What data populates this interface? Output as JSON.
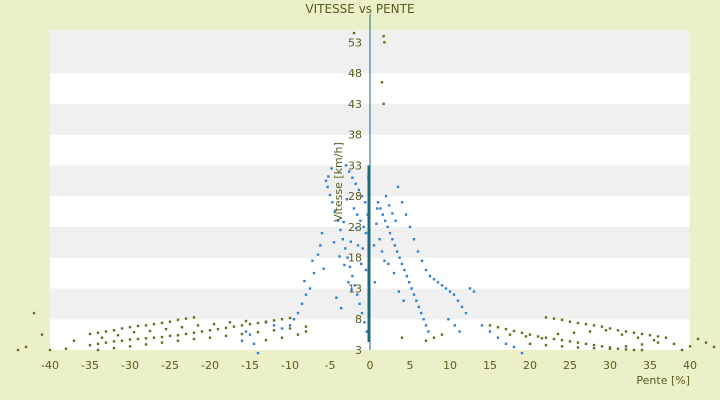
{
  "chart_data": {
    "type": "scatter",
    "title": "VITESSE vs PENTE",
    "xlabel": "Pente [%]",
    "ylabel": "Vitesse [km/h]",
    "xlim": [
      -40,
      40
    ],
    "ylim": [
      3,
      55
    ],
    "x_ticks": [
      -40,
      -35,
      -30,
      -25,
      -20,
      -15,
      -10,
      -5,
      0,
      5,
      10,
      15,
      20,
      25,
      30,
      35,
      40
    ],
    "y_ticks": [
      3,
      8,
      13,
      18,
      23,
      28,
      33,
      38,
      43,
      48,
      53
    ],
    "grid": "horizontal-bands",
    "legend": "none",
    "colors": {
      "background": "#ecf0c8",
      "plot_band_light": "#ffffff",
      "plot_band_dark": "#f0f0f0",
      "axis": "#1f6680",
      "series_blue": "#2e7fd6",
      "series_olive": "#6a6a1a",
      "text": "#5a5a1e"
    },
    "series": [
      {
        "color_key": "series_blue",
        "points": [
          [
            -5.5,
            30.5
          ],
          [
            -5.3,
            29.5
          ],
          [
            -5.0,
            28.2
          ],
          [
            -4.7,
            27.0
          ],
          [
            -4.4,
            25.5
          ],
          [
            -4.0,
            24.0
          ],
          [
            -3.7,
            22.5
          ],
          [
            -3.4,
            21.0
          ],
          [
            -3.1,
            19.5
          ],
          [
            -2.8,
            18.0
          ],
          [
            -2.5,
            16.5
          ],
          [
            -2.2,
            15.0
          ],
          [
            -1.9,
            13.5
          ],
          [
            -1.6,
            12.0
          ],
          [
            -1.3,
            10.5
          ],
          [
            -1.0,
            9.0
          ],
          [
            -0.7,
            7.5
          ],
          [
            -0.4,
            6.0
          ],
          [
            -3.0,
            33.0
          ],
          [
            -2.6,
            32.0
          ],
          [
            -2.2,
            31.0
          ],
          [
            -1.8,
            30.0
          ],
          [
            -1.4,
            29.0
          ],
          [
            -1.0,
            28.0
          ],
          [
            -0.6,
            27.0
          ],
          [
            -2.0,
            26.0
          ],
          [
            -1.6,
            25.0
          ],
          [
            -1.2,
            24.0
          ],
          [
            -0.8,
            23.0
          ],
          [
            -0.5,
            22.0
          ],
          [
            -6.0,
            22.0
          ],
          [
            -6.5,
            18.5
          ],
          [
            -7.0,
            15.5
          ],
          [
            -7.5,
            13.0
          ],
          [
            -8.0,
            12.0
          ],
          [
            -8.5,
            10.5
          ],
          [
            -9.0,
            9.0
          ],
          [
            -9.5,
            8.0
          ],
          [
            -10.0,
            7.0
          ],
          [
            -11.0,
            6.5
          ],
          [
            -12.0,
            7.0
          ],
          [
            -13.0,
            7.5
          ],
          [
            -14.0,
            2.5
          ],
          [
            -14.5,
            4.0
          ],
          [
            -15.0,
            5.5
          ],
          [
            -15.5,
            6.0
          ],
          [
            -16.0,
            4.5
          ],
          [
            -4.5,
            20.5
          ],
          [
            -3.8,
            18.2
          ],
          [
            -3.2,
            16.8
          ],
          [
            -2.7,
            14.0
          ],
          [
            -2.3,
            12.8
          ],
          [
            -5.8,
            16.2
          ],
          [
            -6.2,
            20.0
          ],
          [
            -7.2,
            17.5
          ],
          [
            -8.2,
            14.2
          ],
          [
            -4.2,
            11.5
          ],
          [
            -3.6,
            9.8
          ],
          [
            -1.5,
            20.0
          ],
          [
            -1.1,
            17.0
          ],
          [
            -0.9,
            19.5
          ],
          [
            -0.3,
            25.0
          ],
          [
            -0.2,
            31.0
          ],
          [
            -2.9,
            27.5
          ],
          [
            -3.3,
            23.8
          ],
          [
            -4.8,
            32.5
          ],
          [
            -5.2,
            31.2
          ],
          [
            -0.5,
            16.0
          ],
          [
            -1.7,
            22.8
          ],
          [
            -2.4,
            20.6
          ],
          [
            1.0,
            27.0
          ],
          [
            1.3,
            26.0
          ],
          [
            1.6,
            25.0
          ],
          [
            1.9,
            24.0
          ],
          [
            2.2,
            23.0
          ],
          [
            2.5,
            22.0
          ],
          [
            2.8,
            21.0
          ],
          [
            3.1,
            20.0
          ],
          [
            3.4,
            19.0
          ],
          [
            3.7,
            18.0
          ],
          [
            4.0,
            17.0
          ],
          [
            4.3,
            16.0
          ],
          [
            4.6,
            15.0
          ],
          [
            4.9,
            14.0
          ],
          [
            5.2,
            13.0
          ],
          [
            5.5,
            12.0
          ],
          [
            5.8,
            11.0
          ],
          [
            6.1,
            10.0
          ],
          [
            6.4,
            9.0
          ],
          [
            6.7,
            8.0
          ],
          [
            7.0,
            7.0
          ],
          [
            7.3,
            6.0
          ],
          [
            3.5,
            29.5
          ],
          [
            4.0,
            27.0
          ],
          [
            4.5,
            25.0
          ],
          [
            5.0,
            23.0
          ],
          [
            5.5,
            21.0
          ],
          [
            6.0,
            19.0
          ],
          [
            6.5,
            17.5
          ],
          [
            7.0,
            16.0
          ],
          [
            7.5,
            15.0
          ],
          [
            8.0,
            14.5
          ],
          [
            8.5,
            14.0
          ],
          [
            9.0,
            13.5
          ],
          [
            9.5,
            13.0
          ],
          [
            10.0,
            12.5
          ],
          [
            10.5,
            12.0
          ],
          [
            11.0,
            11.0
          ],
          [
            11.5,
            10.0
          ],
          [
            12.0,
            9.0
          ],
          [
            12.5,
            13.0
          ],
          [
            13.0,
            12.5
          ],
          [
            14.0,
            7.0
          ],
          [
            15.0,
            6.0
          ],
          [
            16.0,
            5.0
          ],
          [
            17.0,
            4.0
          ],
          [
            18.0,
            3.5
          ],
          [
            19.0,
            2.5
          ],
          [
            2.0,
            28.0
          ],
          [
            2.4,
            26.5
          ],
          [
            2.8,
            25.2
          ],
          [
            3.2,
            24.0
          ],
          [
            1.2,
            21.0
          ],
          [
            1.5,
            19.0
          ],
          [
            1.8,
            17.5
          ],
          [
            0.8,
            23.5
          ],
          [
            0.5,
            20.0
          ],
          [
            0.6,
            14.0
          ],
          [
            3.0,
            15.5
          ],
          [
            3.6,
            12.5
          ],
          [
            4.2,
            11.0
          ],
          [
            2.3,
            17.0
          ],
          [
            9.8,
            8.0
          ],
          [
            10.6,
            7.0
          ],
          [
            11.2,
            6.0
          ],
          [
            0.9,
            26.0
          ]
        ]
      },
      {
        "color_key": "series_olive",
        "points": [
          [
            -35,
            5.6
          ],
          [
            -34,
            5.8
          ],
          [
            -33,
            6.0
          ],
          [
            -32,
            6.2
          ],
          [
            -31,
            6.5
          ],
          [
            -30,
            6.7
          ],
          [
            -29,
            6.9
          ],
          [
            -28,
            7.0
          ],
          [
            -27,
            7.2
          ],
          [
            -26,
            7.4
          ],
          [
            -25,
            7.6
          ],
          [
            -24,
            7.9
          ],
          [
            -23,
            8.1
          ],
          [
            -22,
            8.3
          ],
          [
            -35,
            3.8
          ],
          [
            -34,
            4.0
          ],
          [
            -33,
            4.2
          ],
          [
            -32,
            4.4
          ],
          [
            -31,
            4.5
          ],
          [
            -30,
            4.7
          ],
          [
            -29,
            4.8
          ],
          [
            -28,
            4.9
          ],
          [
            -27,
            5.0
          ],
          [
            -26,
            5.1
          ],
          [
            -25,
            5.3
          ],
          [
            -24,
            5.4
          ],
          [
            -23,
            5.6
          ],
          [
            -22,
            5.8
          ],
          [
            -21,
            6.0
          ],
          [
            -20,
            6.2
          ],
          [
            -19,
            6.4
          ],
          [
            -18,
            6.6
          ],
          [
            -17,
            6.8
          ],
          [
            -16,
            7.0
          ],
          [
            -15,
            7.2
          ],
          [
            -14,
            7.4
          ],
          [
            -13,
            7.6
          ],
          [
            -12,
            7.8
          ],
          [
            -11,
            8.0
          ],
          [
            -10,
            8.2
          ],
          [
            -34,
            3.0
          ],
          [
            -32,
            3.3
          ],
          [
            -30,
            3.6
          ],
          [
            -28,
            3.9
          ],
          [
            -26,
            4.2
          ],
          [
            -24,
            4.5
          ],
          [
            -22,
            4.8
          ],
          [
            -20,
            5.0
          ],
          [
            -18,
            5.3
          ],
          [
            -16,
            5.6
          ],
          [
            -14,
            5.9
          ],
          [
            -12,
            6.2
          ],
          [
            -10,
            6.5
          ],
          [
            -8,
            6.8
          ],
          [
            -37,
            4.5
          ],
          [
            -38,
            3.2
          ],
          [
            -40,
            3.0
          ],
          [
            -41,
            5.5
          ],
          [
            -42,
            9.0
          ],
          [
            -43,
            3.5
          ],
          [
            -44,
            3.0
          ],
          [
            -33.5,
            5.0
          ],
          [
            -31.5,
            5.4
          ],
          [
            -29.5,
            5.9
          ],
          [
            -27.5,
            6.1
          ],
          [
            -25.5,
            6.4
          ],
          [
            -23.5,
            6.7
          ],
          [
            -21.5,
            7.0
          ],
          [
            -19.5,
            7.2
          ],
          [
            -17.5,
            7.5
          ],
          [
            -15.5,
            7.7
          ],
          [
            22,
            8.3
          ],
          [
            23,
            8.1
          ],
          [
            24,
            7.9
          ],
          [
            25,
            7.6
          ],
          [
            26,
            7.4
          ],
          [
            27,
            7.2
          ],
          [
            28,
            7.0
          ],
          [
            29,
            6.8
          ],
          [
            30,
            6.5
          ],
          [
            31,
            6.2
          ],
          [
            32,
            6.0
          ],
          [
            33,
            5.8
          ],
          [
            34,
            5.6
          ],
          [
            35,
            5.4
          ],
          [
            36,
            5.2
          ],
          [
            37,
            5.0
          ],
          [
            15,
            7.0
          ],
          [
            16,
            6.7
          ],
          [
            17,
            6.4
          ],
          [
            18,
            6.1
          ],
          [
            19,
            5.8
          ],
          [
            20,
            5.5
          ],
          [
            21,
            5.2
          ],
          [
            22,
            5.0
          ],
          [
            23,
            4.8
          ],
          [
            24,
            4.6
          ],
          [
            25,
            4.4
          ],
          [
            26,
            4.2
          ],
          [
            27,
            4.0
          ],
          [
            28,
            3.8
          ],
          [
            29,
            3.6
          ],
          [
            30,
            3.4
          ],
          [
            31,
            3.2
          ],
          [
            32,
            3.1
          ],
          [
            33,
            3.0
          ],
          [
            34,
            3.0
          ],
          [
            20,
            4.0
          ],
          [
            22,
            3.8
          ],
          [
            24,
            3.6
          ],
          [
            26,
            3.4
          ],
          [
            28,
            3.3
          ],
          [
            30,
            3.2
          ],
          [
            32,
            3.6
          ],
          [
            34,
            3.9
          ],
          [
            36,
            4.2
          ],
          [
            38,
            4.0
          ],
          [
            40,
            3.6
          ],
          [
            41,
            4.8
          ],
          [
            42,
            4.2
          ],
          [
            43,
            3.5
          ],
          [
            39,
            3.0
          ],
          [
            17.5,
            5.5
          ],
          [
            19.5,
            5.2
          ],
          [
            21.5,
            4.9
          ],
          [
            23.5,
            5.6
          ],
          [
            25.5,
            5.8
          ],
          [
            27.5,
            6.0
          ],
          [
            29.5,
            6.2
          ],
          [
            31.5,
            5.5
          ],
          [
            33.5,
            5.0
          ],
          [
            35.5,
            4.6
          ],
          [
            -8,
            6.0
          ],
          [
            -9,
            5.5
          ],
          [
            -11,
            5.0
          ],
          [
            -13,
            4.6
          ],
          [
            7,
            4.5
          ],
          [
            8,
            5.0
          ],
          [
            9,
            5.5
          ],
          [
            4,
            5.0
          ],
          [
            -2,
            54.5
          ],
          [
            1.7,
            54.0
          ],
          [
            1.8,
            53.0
          ],
          [
            1.5,
            46.5
          ],
          [
            1.7,
            43.0
          ]
        ]
      }
    ]
  }
}
